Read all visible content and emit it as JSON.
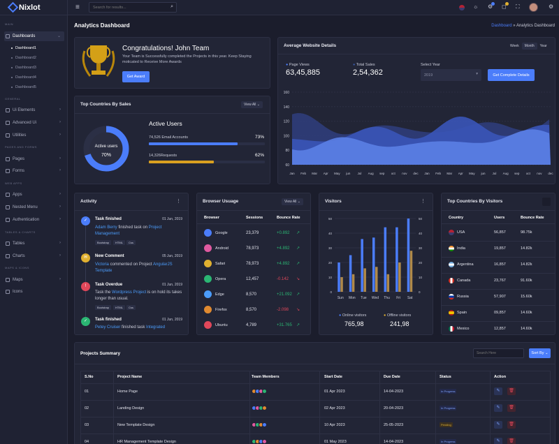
{
  "brand": "Nixlot",
  "search": {
    "placeholder": "Search for results..."
  },
  "sidebar": {
    "sec_main": "MAIN",
    "sec_general": "GENERAL",
    "sec_pages": "PAGES AND FORMS",
    "sec_web": "WEB APPS",
    "sec_tables": "TABLES & CHARTS",
    "sec_maps": "MAPS & ICONS",
    "dashboards": "Dashboards",
    "subs": [
      "Dashboard1",
      "Dashboard2",
      "Dashboard3",
      "Dashboard4",
      "Dashboard5"
    ],
    "ui": "Ui Elements",
    "advanced": "Advanced Ui",
    "utilities": "Utilities",
    "pages": "Pages",
    "forms": "Forms",
    "apps": "Apps",
    "nested": "Nested Menu",
    "auth": "Authentication",
    "tables": "Tables",
    "charts": "Charts",
    "maps": "Maps",
    "icons": "Icons"
  },
  "header": {
    "title": "Analytics Dashboard",
    "crumb1": "Dashboard",
    "sep": "»",
    "crumb2": "Analytics Dashboard"
  },
  "congrats": {
    "title": "Congratulations! John Team",
    "text1": "Your Team is Successfully completed the Projects in this year. Keep Staying",
    "text2": "moticated to Receive More Awards",
    "button": "Get Award"
  },
  "website": {
    "title": "Average Website Details",
    "tabs": [
      "Week",
      "Month",
      "Year"
    ],
    "pv_label": "Page Views",
    "pv_value": "63,45,885",
    "ts_label": "Total Sales",
    "ts_value": "2,54,362",
    "year_label": "Select Year",
    "year_value": "2019",
    "button": "Get Complete Details"
  },
  "area_axis": {
    "y": [
      "160",
      "140",
      "120",
      "100",
      "80",
      "60"
    ],
    "x": [
      "Jan",
      "Feb",
      "Mar",
      "Apr",
      "May",
      "jun",
      "Jul",
      "Aug",
      "sep",
      "oct",
      "nov",
      "dec",
      "Jan",
      "Feb",
      "Mar",
      "Apr",
      "May",
      "jun",
      "Jul",
      "Aug",
      "sep",
      "oct",
      "nov",
      "dec"
    ]
  },
  "countries_card": {
    "title": "Top Countries By Sales",
    "view": "View All",
    "donut_label": "Active users",
    "donut_value": "70%",
    "active_title": "Active Users",
    "r1_num": "74,526",
    "r1_label": "Email Accounts",
    "r1_pct": "73%",
    "r2_num": "14,326",
    "r2_label": "Requests",
    "r2_pct": "62%"
  },
  "activity": {
    "title": "Activity",
    "items": [
      {
        "title": "Task finished",
        "date": "01 Jun, 2019",
        "who": "Adam Berry",
        "mid": " finished task on ",
        "link": "Project",
        "link2": "Management",
        "tags": [
          "Bootstrap",
          "HTML",
          "Css"
        ]
      },
      {
        "title": "New Comment",
        "date": "05 Jun, 2019",
        "who": "Victoria",
        "mid": " commented on Project ",
        "link": "AngularJS",
        "link2": "Template"
      },
      {
        "title": "Task Overdue",
        "date": "01 Jun, 2019",
        "pre": "Task the ",
        "link": "Wordpress Project",
        "post": " is on hold its takes",
        "post2": "longer than usual.",
        "tags": [
          "Bootstrap",
          "HTML",
          "Css"
        ]
      },
      {
        "title": "Task finished",
        "date": "01 Jun, 2019",
        "who": "Petey Cruiser",
        "mid": " finished task ",
        "link": "Integrated"
      }
    ]
  },
  "browser": {
    "title": "Browser Usuage",
    "view": "View All",
    "cols": [
      "Browser",
      "Sessions",
      "Bounce Rate"
    ],
    "rows": [
      {
        "name": "Google",
        "sessions": "23,379",
        "rate": "+0.892"
      },
      {
        "name": "Android",
        "sessions": "78,973",
        "rate": "+4.892"
      },
      {
        "name": "Safari",
        "sessions": "78,973",
        "rate": "+4.892"
      },
      {
        "name": "Opera",
        "sessions": "12,457",
        "rate": "-0.142"
      },
      {
        "name": "Edge",
        "sessions": "8,570",
        "rate": "+21.092"
      },
      {
        "name": "Firefox",
        "sessions": "8,570",
        "rate": "-2.098"
      },
      {
        "name": "Ubuntu",
        "sessions": "4,789",
        "rate": "+31.765"
      }
    ]
  },
  "visitors": {
    "title": "Visitors",
    "online_label": "Online visitors",
    "online_value": "765,98",
    "offline_label": "Offline visitors",
    "offline_value": "241,98"
  },
  "chart_data": {
    "type": "bar",
    "categories": [
      "Sun",
      "Mon",
      "Tue",
      "Wed",
      "Thu",
      "Fri",
      "Sat"
    ],
    "y_left": [
      "50",
      "40",
      "30",
      "20",
      "10",
      "0"
    ],
    "y_right": [
      "50",
      "40",
      "30",
      "20",
      "10",
      "0"
    ],
    "ylim": [
      0,
      50
    ],
    "series": [
      {
        "name": "Online visitors",
        "color": "#4b7dfa",
        "values": [
          20,
          25,
          36,
          37,
          44,
          44,
          50
        ]
      },
      {
        "name": "Offline visitors",
        "color": "#b08a4a",
        "values": [
          10,
          12,
          16,
          17,
          12,
          20,
          28
        ]
      }
    ]
  },
  "top_visitors": {
    "title": "Top Countries By Visitors",
    "cols": [
      "Country",
      "Users",
      "Bounce Rate"
    ],
    "rows": [
      {
        "name": "USA",
        "users": "56,857",
        "rate": "98.75k"
      },
      {
        "name": "India",
        "users": "19,857",
        "rate": "14.82k"
      },
      {
        "name": "Argentina",
        "users": "16,857",
        "rate": "14.82k"
      },
      {
        "name": "Canada",
        "users": "23,767",
        "rate": "91.60k"
      },
      {
        "name": "Russia",
        "users": "57,907",
        "rate": "15.60k"
      },
      {
        "name": "Spain",
        "users": "09,857",
        "rate": "14.60k"
      },
      {
        "name": "Mexico",
        "users": "12,857",
        "rate": "14.60k"
      }
    ]
  },
  "projects": {
    "title": "Projects Summary",
    "search_placeholder": "Search Here",
    "sort": "Sort By",
    "cols": [
      "S.No",
      "Project Name",
      "Team Members",
      "Start Date",
      "Due Date",
      "Status",
      "Action"
    ],
    "rows": [
      {
        "no": "01",
        "name": "Home Page",
        "start": "01 Apr 2023",
        "due": "14-04-2023",
        "status": "In Progress"
      },
      {
        "no": "02",
        "name": "Landing Design",
        "start": "02 Apr 2023",
        "due": "20-04-2023",
        "status": "In Progress"
      },
      {
        "no": "03",
        "name": "New Template Design",
        "start": "10 Apr 2023",
        "due": "25-05-2023",
        "status": "Pending"
      },
      {
        "no": "04",
        "name": "HR Management Template Design",
        "start": "01 May 2023",
        "due": "14-04-2023",
        "status": "In Progress"
      }
    ]
  }
}
